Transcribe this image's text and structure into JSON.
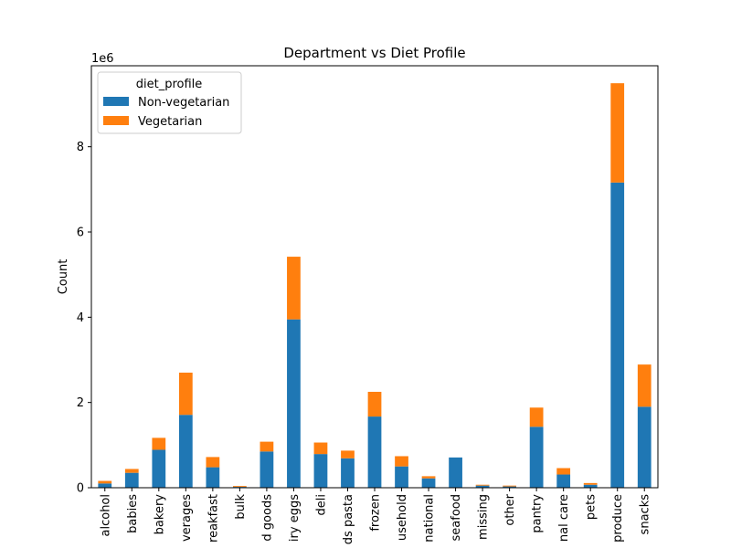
{
  "chart_data": {
    "type": "bar",
    "stacked": true,
    "title": "Department vs Diet Profile",
    "xlabel": "",
    "ylabel": "Count",
    "offset_text": "1e6",
    "ylim": [
      0,
      9.9
    ],
    "yticks": [
      0,
      2,
      4,
      6,
      8
    ],
    "legend": {
      "title": "diet_profile",
      "placement": "upper-left"
    },
    "categories": [
      "alcohol",
      "babies",
      "bakery",
      "beverages",
      "breakfast",
      "bulk",
      "canned goods",
      "dairy eggs",
      "deli",
      "dry goods pasta",
      "frozen",
      "household",
      "international",
      "meat seafood",
      "missing",
      "other",
      "pantry",
      "personal care",
      "pets",
      "produce",
      "snacks"
    ],
    "tick_labels": [
      "alcohol",
      "babies",
      "bakery",
      "verages",
      "reakfast",
      "bulk",
      "d goods",
      "iry eggs",
      "deli",
      "ds pasta",
      "frozen",
      "usehold",
      "national",
      "seafood",
      "missing",
      "other",
      "pantry",
      "nal care",
      "pets",
      "produce",
      "snacks"
    ],
    "series": [
      {
        "name": "Non-vegetarian",
        "color": "#1f77b4",
        "values": [
          0.1,
          0.35,
          0.89,
          1.71,
          0.48,
          0.02,
          0.85,
          3.95,
          0.79,
          0.69,
          1.67,
          0.5,
          0.22,
          0.71,
          0.05,
          0.03,
          1.43,
          0.31,
          0.07,
          7.16,
          1.9
        ]
      },
      {
        "name": "Vegetarian",
        "color": "#ff7f0e",
        "values": [
          0.06,
          0.09,
          0.28,
          0.99,
          0.24,
          0.02,
          0.23,
          1.47,
          0.27,
          0.18,
          0.58,
          0.24,
          0.05,
          0.0,
          0.02,
          0.02,
          0.45,
          0.15,
          0.04,
          2.33,
          0.99
        ]
      }
    ]
  }
}
